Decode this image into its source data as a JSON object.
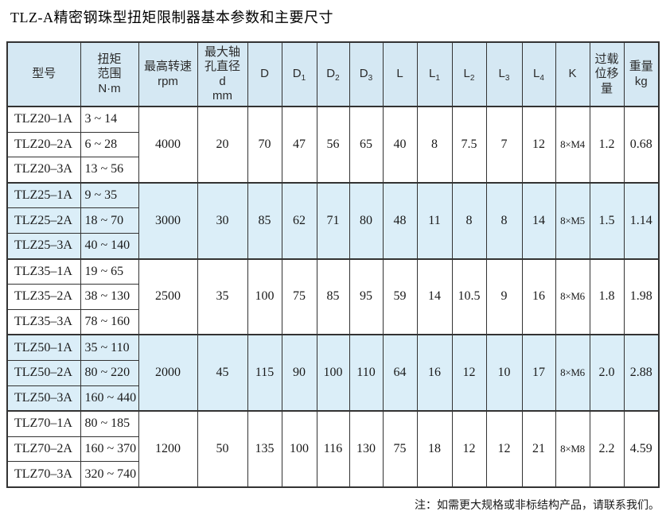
{
  "page": {
    "title": "TLZ-A精密钢珠型扭矩限制器基本参数和主要尺寸",
    "footnote": "注：如需更大规格或非标结构产品，请联系我们。"
  },
  "colors": {
    "header_bg": "#d5e8f3",
    "band_bg": "#dbeef8",
    "border": "#333333"
  },
  "table": {
    "columns": [
      {
        "key": "model",
        "label": "型号"
      },
      {
        "key": "torque",
        "label": "扭矩\n范围\nN·m"
      },
      {
        "key": "rpm",
        "label": "最高转速\nrpm"
      },
      {
        "key": "d",
        "label": "最大轴\n孔直径\nd\nmm"
      },
      {
        "key": "D",
        "base": "D"
      },
      {
        "key": "D1",
        "base": "D",
        "sub": "1"
      },
      {
        "key": "D2",
        "base": "D",
        "sub": "2"
      },
      {
        "key": "D3",
        "base": "D",
        "sub": "3"
      },
      {
        "key": "L",
        "base": "L"
      },
      {
        "key": "L1",
        "base": "L",
        "sub": "1"
      },
      {
        "key": "L2",
        "base": "L",
        "sub": "2"
      },
      {
        "key": "L3",
        "base": "L",
        "sub": "3"
      },
      {
        "key": "L4",
        "base": "L",
        "sub": "4"
      },
      {
        "key": "K",
        "base": "K"
      },
      {
        "key": "overload",
        "label": "过载\n位移\n量"
      },
      {
        "key": "weight",
        "label": "重量\nkg"
      }
    ],
    "merged_keys": [
      "rpm",
      "d",
      "D",
      "D1",
      "D2",
      "D3",
      "L",
      "L1",
      "L2",
      "L3",
      "L4",
      "K",
      "overload",
      "weight"
    ],
    "groups": [
      {
        "shaded": false,
        "rows": [
          {
            "model": "TLZ20–1A",
            "torque": "3 ~ 14"
          },
          {
            "model": "TLZ20–2A",
            "torque": "6 ~ 28"
          },
          {
            "model": "TLZ20–3A",
            "torque": "13 ~ 56"
          }
        ],
        "merged": [
          "4000",
          "20",
          "70",
          "47",
          "56",
          "65",
          "40",
          "8",
          "7.5",
          "7",
          "12",
          "8×M4",
          "1.2",
          "0.68"
        ]
      },
      {
        "shaded": true,
        "rows": [
          {
            "model": "TLZ25–1A",
            "torque": "9 ~ 35"
          },
          {
            "model": "TLZ25–2A",
            "torque": "18 ~ 70"
          },
          {
            "model": "TLZ25–3A",
            "torque": "40 ~ 140"
          }
        ],
        "merged": [
          "3000",
          "30",
          "85",
          "62",
          "71",
          "80",
          "48",
          "11",
          "8",
          "8",
          "14",
          "8×M5",
          "1.5",
          "1.14"
        ]
      },
      {
        "shaded": false,
        "rows": [
          {
            "model": "TLZ35–1A",
            "torque": "19 ~ 65"
          },
          {
            "model": "TLZ35–2A",
            "torque": "38 ~ 130"
          },
          {
            "model": "TLZ35–3A",
            "torque": "78 ~ 160"
          }
        ],
        "merged": [
          "2500",
          "35",
          "100",
          "75",
          "85",
          "95",
          "59",
          "14",
          "10.5",
          "9",
          "16",
          "8×M6",
          "1.8",
          "1.98"
        ]
      },
      {
        "shaded": true,
        "rows": [
          {
            "model": "TLZ50–1A",
            "torque": "35 ~ 110"
          },
          {
            "model": "TLZ50–2A",
            "torque": "80 ~ 220"
          },
          {
            "model": "TLZ50–3A",
            "torque": "160 ~ 440"
          }
        ],
        "merged": [
          "2000",
          "45",
          "115",
          "90",
          "100",
          "110",
          "64",
          "16",
          "12",
          "10",
          "17",
          "8×M6",
          "2.0",
          "2.88"
        ]
      },
      {
        "shaded": false,
        "rows": [
          {
            "model": "TLZ70–1A",
            "torque": "80 ~ 185"
          },
          {
            "model": "TLZ70–2A",
            "torque": "160 ~ 370"
          },
          {
            "model": "TLZ70–3A",
            "torque": "320 ~ 740"
          }
        ],
        "merged": [
          "1200",
          "50",
          "135",
          "100",
          "116",
          "130",
          "75",
          "18",
          "12",
          "12",
          "21",
          "8×M8",
          "2.2",
          "4.59"
        ]
      }
    ]
  }
}
